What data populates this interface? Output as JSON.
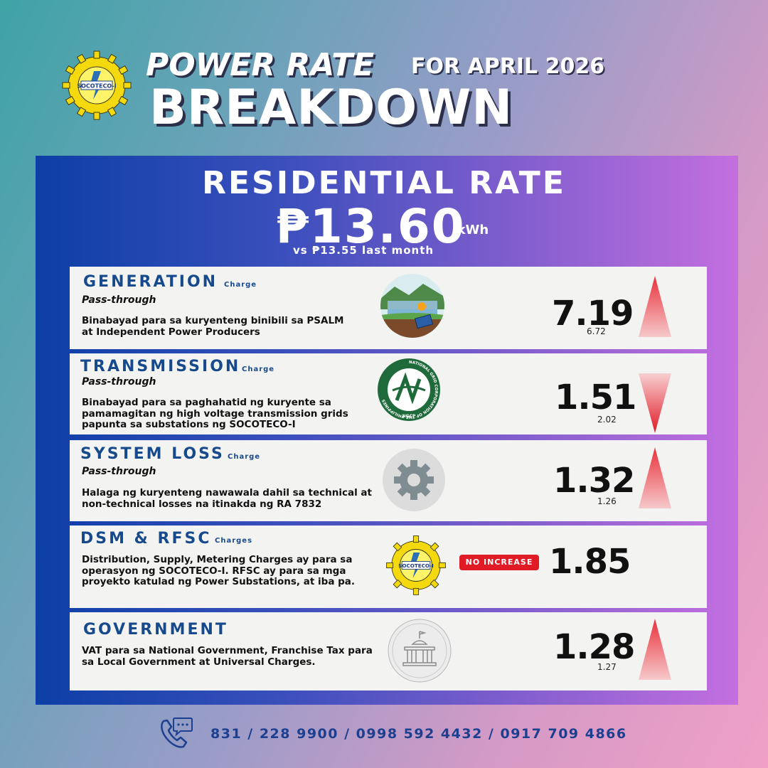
{
  "header": {
    "title_line1": "POWER RATE",
    "title_month": "FOR APRIL 2026",
    "title_line2": "BREAKDOWN",
    "logo": {
      "name": "SOCOTECO-I",
      "ring_text": "SOUTH COTABATO I ELECTRIC COOPERATIVE, INC.",
      "date_text": "AUGUST 21, 1971"
    }
  },
  "residential": {
    "title": "RESIDENTIAL RATE",
    "price": "₱13.60",
    "unit": "/kWh",
    "comparison": "vs ₱13.55 last month"
  },
  "rows": [
    {
      "name": "GENERATION",
      "suffix": "Charge",
      "passthrough": "Pass-through",
      "description": "Binabayad para sa kuryenteng binibili sa PSALM at Independent Power Producers",
      "icon": "power-plant-icon",
      "value": "7.19",
      "previous": "6.72",
      "trend": "up"
    },
    {
      "name": "TRANSMISSION",
      "suffix": "Charge",
      "passthrough": "Pass-through",
      "description": "Binabayad para sa paghahatid ng kuryente sa pamamagitan ng high voltage transmission grids papunta sa substations ng SOCOTECO-I",
      "icon": "ngcp-logo-icon",
      "icon_text": "NATIONAL GRID CORPORATION OF THE PHILIPPINES",
      "icon_sub": "NGCP",
      "value": "1.51",
      "previous": "2.02",
      "trend": "down"
    },
    {
      "name": "SYSTEM LOSS",
      "suffix": "Charge",
      "passthrough": "Pass-through",
      "description": "Halaga ng kuryenteng nawawala dahil sa technical at non-technical losses na itinakda ng RA 7832",
      "icon": "gear-icon",
      "value": "1.32",
      "previous": "1.26",
      "trend": "up"
    },
    {
      "name": "DSM & RFSC",
      "suffix": "Charges",
      "description": "Distribution, Supply, Metering Charges ay para sa operasyon ng SOCOTECO-I. RFSC ay para sa mga proyekto katulad ng Power Substations, at iba pa.",
      "icon": "socoteco-logo-icon",
      "badge": "NO INCREASE",
      "value": "1.85",
      "trend": "none"
    },
    {
      "name": "GOVERNMENT",
      "description": "VAT para sa National Government, Franchise Tax para sa Local Government at Universal Charges.",
      "icon": "government-building-icon",
      "value": "1.28",
      "previous": "1.27",
      "trend": "up"
    }
  ],
  "footer": {
    "phones": "831 / 228 9900 / 0998 592 4432 / 0917 709 4866",
    "icon": "phone-icon"
  },
  "colors": {
    "panel_start": "#0d3fa6",
    "panel_end": "#c46fdf",
    "label_blue": "#174a8c",
    "up_arrow": "#e8323a",
    "down_arrow": "#e01b25",
    "badge_red": "#e01b25"
  }
}
